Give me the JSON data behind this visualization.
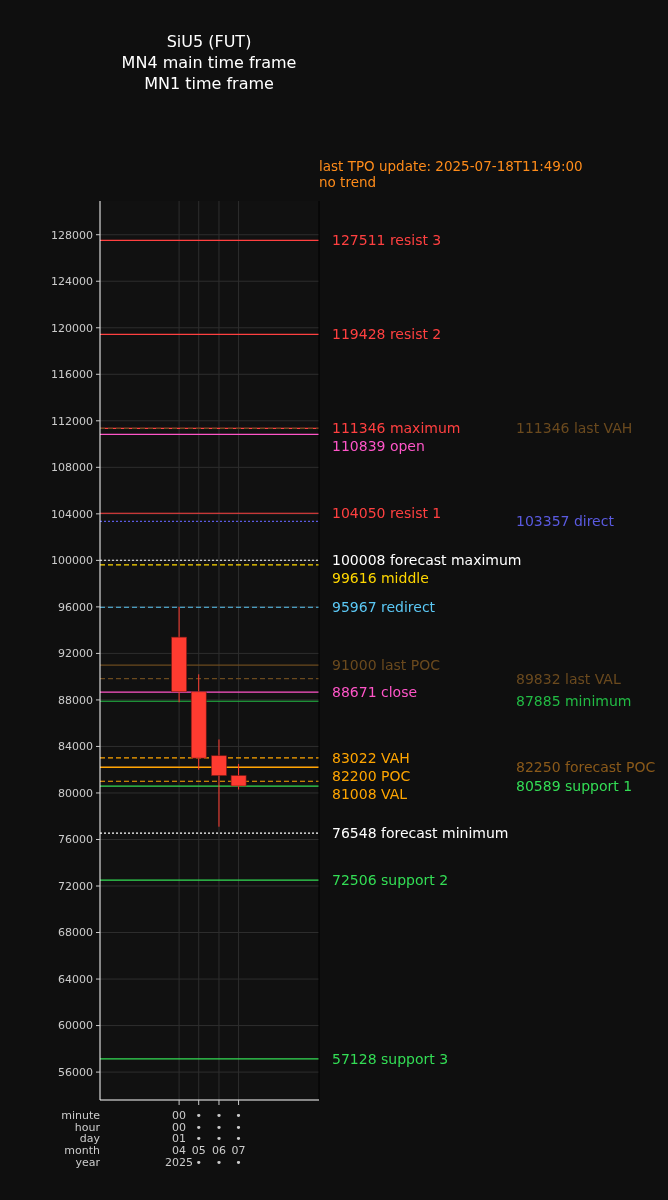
{
  "chart_data": {
    "type": "candlestick",
    "title": "SiU5 (FUT)\nMN4 main time frame\nMN1 time frame",
    "subtitle": "last TPO update: 2025-07-18T11:49:00\nno trend",
    "xlabel": "minute\nhour\nday\nmonth\nyear",
    "x": [
      "2025-04",
      "2025-05",
      "2025-06",
      "2025-07"
    ],
    "ohlc": [
      [
        93400,
        96000,
        87800,
        88700
      ],
      [
        88700,
        90200,
        82000,
        83000
      ],
      [
        83200,
        84600,
        77100,
        81500
      ],
      [
        81500,
        82500,
        80300,
        80600
      ]
    ],
    "colors": [
      "#ff3b30",
      "#ff3b30",
      "#ff3b30",
      "#ff3b30"
    ],
    "xlim": [
      "2024-12",
      "2025-11"
    ],
    "xticks": [
      {
        "value": "2025-04",
        "label": "00\n00\n01\n04\n2025"
      },
      {
        "value": "2025-05",
        "label": "•\n•\n•\n05\n•"
      },
      {
        "value": "2025-06",
        "label": "•\n•\n•\n06\n•"
      },
      {
        "value": "2025-07",
        "label": "•\n•\n•\n07\n•"
      }
    ],
    "ylim": [
      53600,
      130900
    ],
    "yticks": [
      56000,
      60000,
      64000,
      68000,
      72000,
      76000,
      80000,
      84000,
      88000,
      92000,
      96000,
      100000,
      104000,
      108000,
      112000,
      116000,
      120000,
      124000,
      128000
    ],
    "grid": true,
    "ref_lines": [
      {
        "axis": "y",
        "value": 127511,
        "label": "127511 resist 3",
        "color": "#ff4040",
        "line_style": "solid"
      },
      {
        "axis": "y",
        "value": 119428,
        "label": "119428 resist 2",
        "color": "#ff4040",
        "line_style": "solid"
      },
      {
        "axis": "y",
        "value": 111346,
        "label": "111346 maximum",
        "color": "#ff4040",
        "line_style": "solid"
      },
      {
        "axis": "y",
        "value": 111346,
        "label": "111346 last VAH",
        "color": "#6b4a1e",
        "line_style": "dashed"
      },
      {
        "axis": "y",
        "value": 110839,
        "label": "110839 open",
        "color": "#ff55c8",
        "line_style": "solid"
      },
      {
        "axis": "y",
        "value": 104050,
        "label": "104050 resist 1",
        "color": "#ff4040",
        "line_style": "solid"
      },
      {
        "axis": "y",
        "value": 103357,
        "label": "103357 direct",
        "color": "#5a5ae0",
        "line_style": "dotted"
      },
      {
        "axis": "y",
        "value": 100008,
        "label": "100008 forecast maximum",
        "color": "#ffffff",
        "line_style": "dotted"
      },
      {
        "axis": "y",
        "value": 99616,
        "label": "99616 middle",
        "color": "#ffd700",
        "line_style": "dashed"
      },
      {
        "axis": "y",
        "value": 95967,
        "label": "95967 redirect",
        "color": "#5bc8f5",
        "line_style": "dashed"
      },
      {
        "axis": "y",
        "value": 91000,
        "label": "91000 last POC",
        "color": "#6b4a1e",
        "line_style": "solid"
      },
      {
        "axis": "y",
        "value": 89832,
        "label": "89832 last VAL",
        "color": "#6b4a1e",
        "line_style": "dashed"
      },
      {
        "axis": "y",
        "value": 88671,
        "label": "88671 close",
        "color": "#ff55c8",
        "line_style": "solid"
      },
      {
        "axis": "y",
        "value": 87885,
        "label": "87885 minimum",
        "color": "#22bb44",
        "line_style": "solid"
      },
      {
        "axis": "y",
        "value": 83022,
        "label": "83022 VAH",
        "color": "#ffa500",
        "line_style": "dashed"
      },
      {
        "axis": "y",
        "value": 82250,
        "label": "82250 forecast POC",
        "color": "#8b5a1a",
        "line_style": "solid"
      },
      {
        "axis": "y",
        "value": 82200,
        "label": "82200 POC",
        "color": "#ffa500",
        "line_style": "solid"
      },
      {
        "axis": "y",
        "value": 81008,
        "label": "81008 VAL",
        "color": "#ffa500",
        "line_style": "dashed"
      },
      {
        "axis": "y",
        "value": 80589,
        "label": "80589 support 1",
        "color": "#33dd55",
        "line_style": "solid"
      },
      {
        "axis": "y",
        "value": 76548,
        "label": "76548 forecast minimum",
        "color": "#ffffff",
        "line_style": "dotted"
      },
      {
        "axis": "y",
        "value": 72506,
        "label": "72506 support 2",
        "color": "#33dd55",
        "line_style": "solid"
      },
      {
        "axis": "y",
        "value": 57128,
        "label": "57128 support 3",
        "color": "#33dd55",
        "line_style": "solid"
      }
    ]
  }
}
